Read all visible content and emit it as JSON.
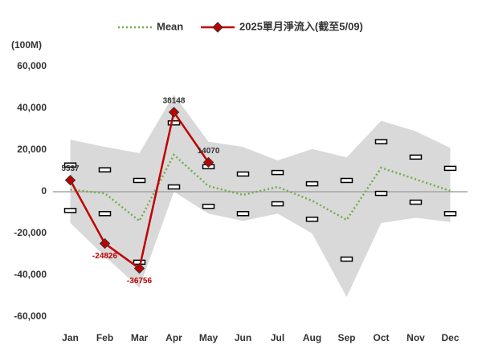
{
  "chart_data": {
    "type": "line",
    "y_label": "(100M)",
    "categories": [
      "Jan",
      "Feb",
      "Mar",
      "Apr",
      "May",
      "Jun",
      "Jul",
      "Aug",
      "Sep",
      "Oct",
      "Nov",
      "Dec"
    ],
    "ylim": [
      -60000,
      60000
    ],
    "yticks": [
      {
        "value": -60000,
        "label": "-60,000"
      },
      {
        "value": -40000,
        "label": "-40,000"
      },
      {
        "value": -20000,
        "label": "-20,000"
      },
      0,
      {
        "value": 20000,
        "label": "20,000"
      },
      {
        "value": 40000,
        "label": "40,000"
      },
      {
        "value": 60000,
        "label": "60,000"
      }
    ],
    "range": {
      "color": "#d9d9d9",
      "high": [
        25000,
        21500,
        18500,
        46500,
        24000,
        21500,
        15000,
        20500,
        16500,
        34000,
        29000,
        21000
      ],
      "low": [
        -15000,
        -31000,
        -46000,
        0,
        -10500,
        -14000,
        -10500,
        -20000,
        -50500,
        -15000,
        -12500,
        -14500
      ]
    },
    "markers": {
      "upper": [
        12800,
        10500,
        5400,
        33000,
        12000,
        8500,
        9200,
        3800,
        5400,
        24000,
        16600,
        11200
      ],
      "lower": [
        -9000,
        -10500,
        -33800,
        2300,
        -7000,
        -10500,
        -5800,
        -13200,
        -32300,
        -800,
        -5000,
        -10500
      ]
    },
    "series": [
      {
        "name": "Mean",
        "color": "#70ad47",
        "style": "dotted",
        "values": [
          1000,
          -800,
          -14000,
          17700,
          2700,
          -1500,
          2300,
          -4300,
          -13500,
          11500,
          6000,
          400
        ]
      },
      {
        "name": "2025單月淨流入(截至5/09)",
        "color": "#c00000",
        "style": "solid",
        "marker": "diamond",
        "values": [
          5537,
          -24826,
          -36756,
          38148,
          14070,
          null,
          null,
          null,
          null,
          null,
          null,
          null
        ],
        "value_labels": [
          "5537",
          "-24826",
          "-36756",
          "38148",
          "14070",
          null,
          null,
          null,
          null,
          null,
          null,
          null
        ]
      }
    ]
  }
}
